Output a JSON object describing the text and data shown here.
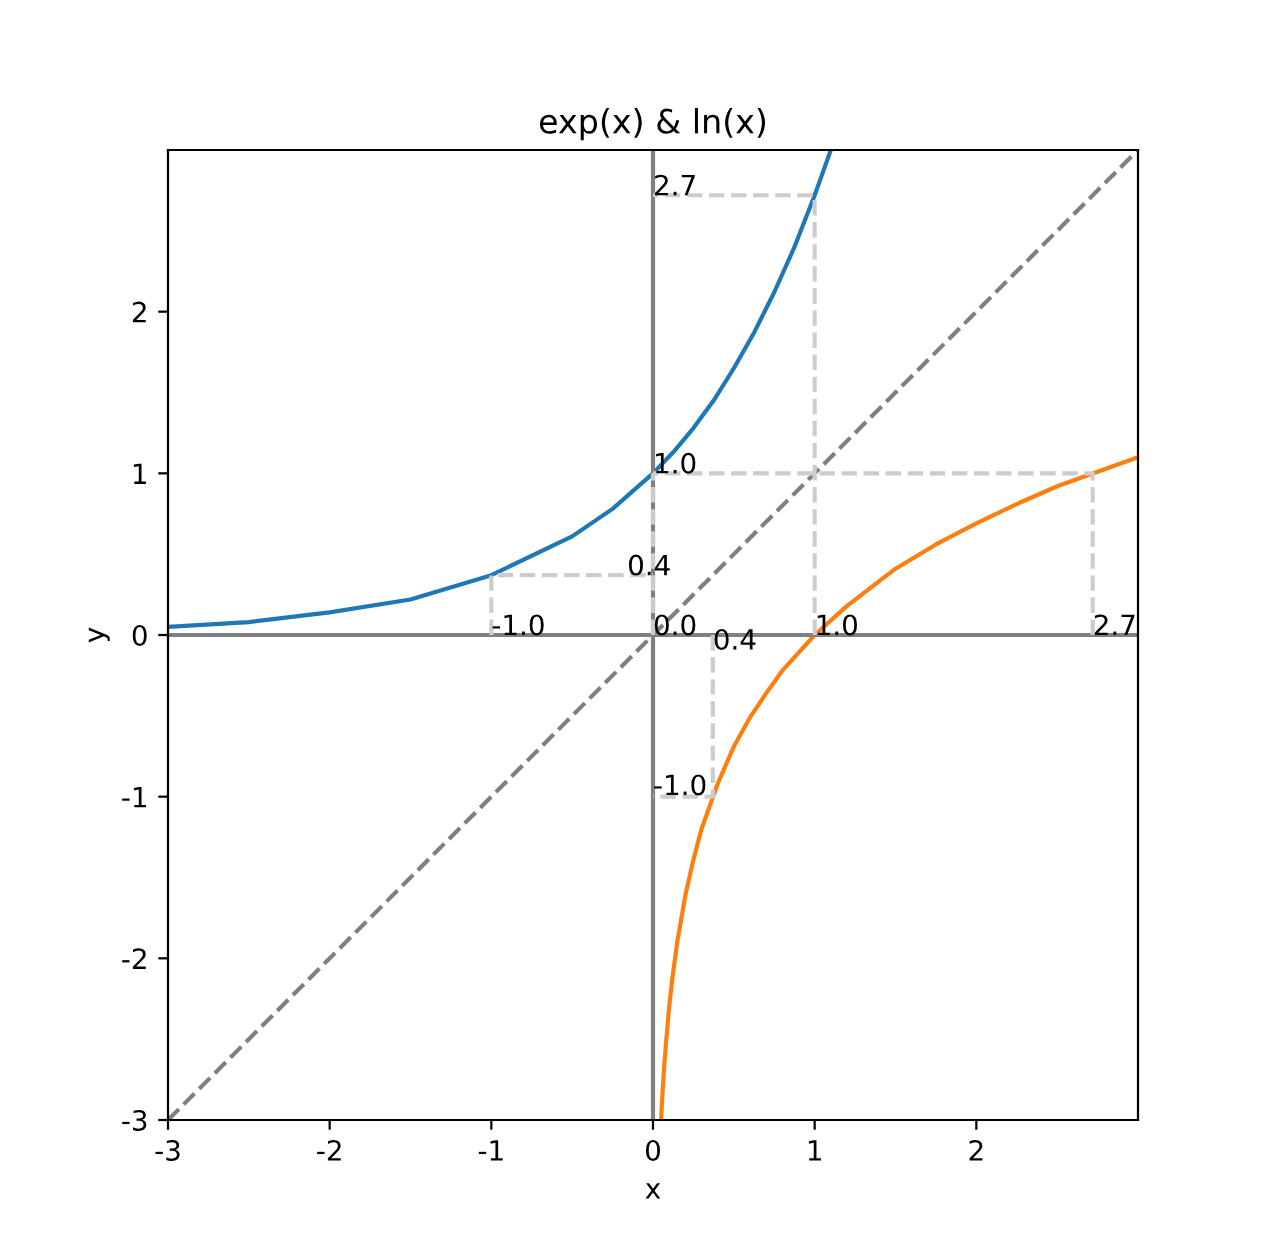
{
  "chart_data": {
    "type": "line",
    "title": "exp(x) & ln(x)",
    "xlabel": "x",
    "ylabel": "y",
    "xlim": [
      -3,
      3
    ],
    "ylim": [
      -3,
      3
    ],
    "xticks": [
      -3,
      -2,
      -1,
      0,
      1,
      2
    ],
    "yticks": [
      -3,
      -2,
      -1,
      0,
      1,
      2
    ],
    "grid": false,
    "series": [
      {
        "color": "#1f77b4",
        "x": [
          -3,
          -2.5,
          -2,
          -1.5,
          -1,
          -0.5,
          -0.25,
          0,
          0.125,
          0.25,
          0.375,
          0.5,
          0.625,
          0.75,
          0.875,
          1,
          1.05,
          1.1
        ],
        "values": [
          0.05,
          0.08,
          0.14,
          0.22,
          0.37,
          0.61,
          0.78,
          1,
          1.13,
          1.28,
          1.45,
          1.65,
          1.87,
          2.12,
          2.4,
          2.72,
          2.86,
          3.0
        ]
      },
      {
        "color": "#ff7f0e",
        "x": [
          0.05,
          0.06,
          0.07,
          0.08,
          0.1,
          0.12,
          0.15,
          0.2,
          0.25,
          0.3,
          0.4,
          0.5,
          0.6,
          0.7,
          0.8,
          1,
          1.2,
          1.5,
          1.75,
          2,
          2.25,
          2.5,
          2.75,
          3
        ],
        "values": [
          -3.0,
          -2.81,
          -2.66,
          -2.53,
          -2.3,
          -2.12,
          -1.9,
          -1.61,
          -1.39,
          -1.2,
          -0.92,
          -0.69,
          -0.51,
          -0.36,
          -0.22,
          0,
          0.18,
          0.41,
          0.56,
          0.69,
          0.81,
          0.92,
          1.01,
          1.1
        ]
      },
      {
        "color": "#808080",
        "x": [
          0,
          0
        ],
        "values": [
          -3,
          3
        ]
      },
      {
        "color": "#808080",
        "x": [
          -3,
          3
        ],
        "values": [
          0,
          0
        ]
      },
      {
        "color": "#808080",
        "line_style": "dashed",
        "x": [
          -3,
          3
        ],
        "values": [
          -3,
          3
        ]
      },
      {
        "color": "#cccccc",
        "line_style": "dashed",
        "x": [
          -1,
          -1,
          0,
          null,
          0,
          0,
          null,
          1,
          1,
          0,
          null,
          0.37,
          0.37,
          0,
          null,
          2.72,
          2.72,
          0
        ],
        "values": [
          0,
          0.37,
          0.37,
          null,
          0,
          1,
          null,
          0,
          2.72,
          2.72,
          null,
          0,
          -1,
          -1,
          null,
          0,
          1,
          1
        ]
      }
    ],
    "annotations": [
      {
        "text": "-1.0",
        "x": -1,
        "y": 0
      },
      {
        "text": "0.4",
        "x": -0.16,
        "y": 0.37
      },
      {
        "text": "0.0",
        "x": 0,
        "y": 0
      },
      {
        "text": "1.0",
        "x": 0,
        "y": 1
      },
      {
        "text": "1.0",
        "x": 1,
        "y": 0
      },
      {
        "text": "2.7",
        "x": 0,
        "y": 2.72
      },
      {
        "text": "0.4",
        "x": 0.37,
        "y": -0.09
      },
      {
        "text": "-1.0",
        "x": 0,
        "y": -0.99
      },
      {
        "text": "2.7",
        "x": 2.72,
        "y": 0
      }
    ]
  }
}
